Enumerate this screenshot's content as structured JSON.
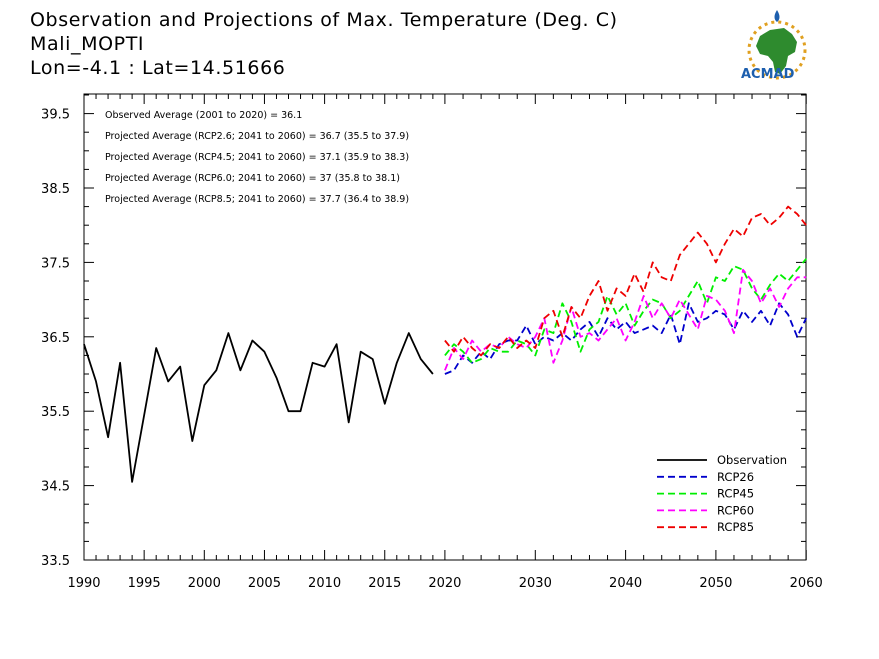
{
  "title_lines": [
    "Observation and Projections of Max. Temperature (Deg. C)",
    "Mali_MOPTI",
    "Lon=-4.1 : Lat=14.51666"
  ],
  "logo": {
    "text": "ACMAD",
    "colors": {
      "africa": "#2e8b2e",
      "ring": "#e0a020",
      "text": "#1d5fae"
    }
  },
  "annotations": [
    "Observed Average (2001 to 2020) = 36.1",
    "Projected Average (RCP2.6; 2041 to 2060) = 36.7 (35.5 to 37.9)",
    "Projected Average (RCP4.5; 2041 to 2060) = 37.1 (35.9 to 38.3)",
    "Projected Average (RCP6.0; 2041 to 2060) = 37 (35.8 to 38.1)",
    "Projected Average (RCP8.5; 2041 to 2060) = 37.7 (36.4 to 38.9)"
  ],
  "chart_data": {
    "type": "line",
    "title": "Observation and Projections of Max. Temperature (Deg. C)",
    "xlabel": "",
    "ylabel": "",
    "xlim": [
      1990,
      2060
    ],
    "ylim": [
      33.5,
      40.0
    ],
    "x_ticks": [
      1990,
      1995,
      2000,
      2005,
      2010,
      2015,
      2020,
      2030,
      2040,
      2050,
      2060
    ],
    "y_ticks": [
      33.5,
      34.5,
      35.5,
      36.5,
      37.5,
      38.5,
      39.5
    ],
    "grid": false,
    "legend_position": "bottom-right",
    "series": [
      {
        "name": "Observation",
        "color": "#000000",
        "dash": "solid",
        "x": [
          1990,
          1991,
          1992,
          1993,
          1994,
          1995,
          1996,
          1997,
          1998,
          1999,
          2000,
          2001,
          2002,
          2003,
          2004,
          2005,
          2006,
          2007,
          2008,
          2009,
          2010,
          2011,
          2012,
          2013,
          2014,
          2015,
          2016,
          2017,
          2018,
          2019
        ],
        "y": [
          36.4,
          35.9,
          35.15,
          36.15,
          34.55,
          35.45,
          36.35,
          35.9,
          36.1,
          35.1,
          35.85,
          36.05,
          36.55,
          36.05,
          36.45,
          36.3,
          35.95,
          35.5,
          35.5,
          36.15,
          36.1,
          36.4,
          35.35,
          36.3,
          36.2,
          35.6,
          36.15,
          36.55,
          36.2,
          36.0
        ]
      },
      {
        "name": "RCP26",
        "color": "#0000cc",
        "dash": "dashed",
        "x": [
          2020,
          2021,
          2022,
          2023,
          2024,
          2025,
          2026,
          2027,
          2028,
          2029,
          2030,
          2031,
          2032,
          2033,
          2034,
          2035,
          2036,
          2037,
          2038,
          2039,
          2040,
          2041,
          2042,
          2043,
          2044,
          2045,
          2046,
          2047,
          2048,
          2049,
          2050,
          2051,
          2052,
          2053,
          2054,
          2055,
          2056,
          2057,
          2058,
          2059,
          2060
        ],
        "y": [
          36.0,
          36.05,
          36.25,
          36.15,
          36.3,
          36.2,
          36.4,
          36.45,
          36.45,
          36.65,
          36.4,
          36.5,
          36.45,
          36.55,
          36.45,
          36.6,
          36.7,
          36.5,
          36.75,
          36.6,
          36.7,
          36.55,
          36.6,
          36.65,
          36.55,
          36.8,
          36.4,
          36.95,
          36.7,
          36.75,
          36.85,
          36.8,
          36.6,
          36.85,
          36.7,
          36.85,
          36.65,
          36.95,
          36.8,
          36.5,
          36.75
        ]
      },
      {
        "name": "RCP45",
        "color": "#00ee00",
        "dash": "dashed",
        "x": [
          2020,
          2021,
          2022,
          2023,
          2024,
          2025,
          2026,
          2027,
          2028,
          2029,
          2030,
          2031,
          2032,
          2033,
          2034,
          2035,
          2036,
          2037,
          2038,
          2039,
          2040,
          2041,
          2042,
          2043,
          2044,
          2045,
          2046,
          2047,
          2048,
          2049,
          2050,
          2051,
          2052,
          2053,
          2054,
          2055,
          2056,
          2057,
          2058,
          2059,
          2060
        ],
        "y": [
          36.25,
          36.4,
          36.3,
          36.15,
          36.2,
          36.35,
          36.3,
          36.3,
          36.45,
          36.4,
          36.25,
          36.6,
          36.55,
          36.95,
          36.7,
          36.3,
          36.6,
          36.7,
          37.05,
          36.8,
          36.95,
          36.65,
          36.85,
          37.0,
          36.95,
          36.75,
          36.85,
          37.05,
          37.25,
          36.95,
          37.3,
          37.25,
          37.45,
          37.4,
          37.15,
          37.0,
          37.2,
          37.35,
          37.25,
          37.4,
          37.55
        ]
      },
      {
        "name": "RCP60",
        "color": "#ff00ff",
        "dash": "dashed",
        "x": [
          2020,
          2021,
          2022,
          2023,
          2024,
          2025,
          2026,
          2027,
          2028,
          2029,
          2030,
          2031,
          2032,
          2033,
          2034,
          2035,
          2036,
          2037,
          2038,
          2039,
          2040,
          2041,
          2042,
          2043,
          2044,
          2045,
          2046,
          2047,
          2048,
          2049,
          2050,
          2051,
          2052,
          2053,
          2054,
          2055,
          2056,
          2057,
          2058,
          2059,
          2060
        ],
        "y": [
          36.05,
          36.35,
          36.2,
          36.45,
          36.3,
          36.4,
          36.35,
          36.5,
          36.4,
          36.35,
          36.5,
          36.75,
          36.15,
          36.45,
          36.9,
          36.5,
          36.55,
          36.45,
          36.6,
          36.75,
          36.45,
          36.7,
          37.05,
          36.75,
          36.95,
          36.75,
          37.0,
          36.8,
          36.6,
          37.05,
          37.0,
          36.85,
          36.55,
          37.4,
          37.25,
          36.95,
          37.15,
          36.9,
          37.15,
          37.3,
          37.3
        ]
      },
      {
        "name": "RCP85",
        "color": "#ee0000",
        "dash": "dashed",
        "x": [
          2020,
          2021,
          2022,
          2023,
          2024,
          2025,
          2026,
          2027,
          2028,
          2029,
          2030,
          2031,
          2032,
          2033,
          2034,
          2035,
          2036,
          2037,
          2038,
          2039,
          2040,
          2041,
          2042,
          2043,
          2044,
          2045,
          2046,
          2047,
          2048,
          2049,
          2050,
          2051,
          2052,
          2053,
          2054,
          2055,
          2056,
          2057,
          2058,
          2059,
          2060
        ],
        "y": [
          36.45,
          36.3,
          36.5,
          36.35,
          36.25,
          36.4,
          36.35,
          36.5,
          36.35,
          36.45,
          36.35,
          36.75,
          36.85,
          36.5,
          36.9,
          36.75,
          37.05,
          37.25,
          36.85,
          37.15,
          37.05,
          37.35,
          37.1,
          37.5,
          37.3,
          37.25,
          37.6,
          37.75,
          37.9,
          37.75,
          37.5,
          37.75,
          37.95,
          37.85,
          38.1,
          38.15,
          38.0,
          38.1,
          38.25,
          38.15,
          38.0
        ]
      }
    ]
  }
}
